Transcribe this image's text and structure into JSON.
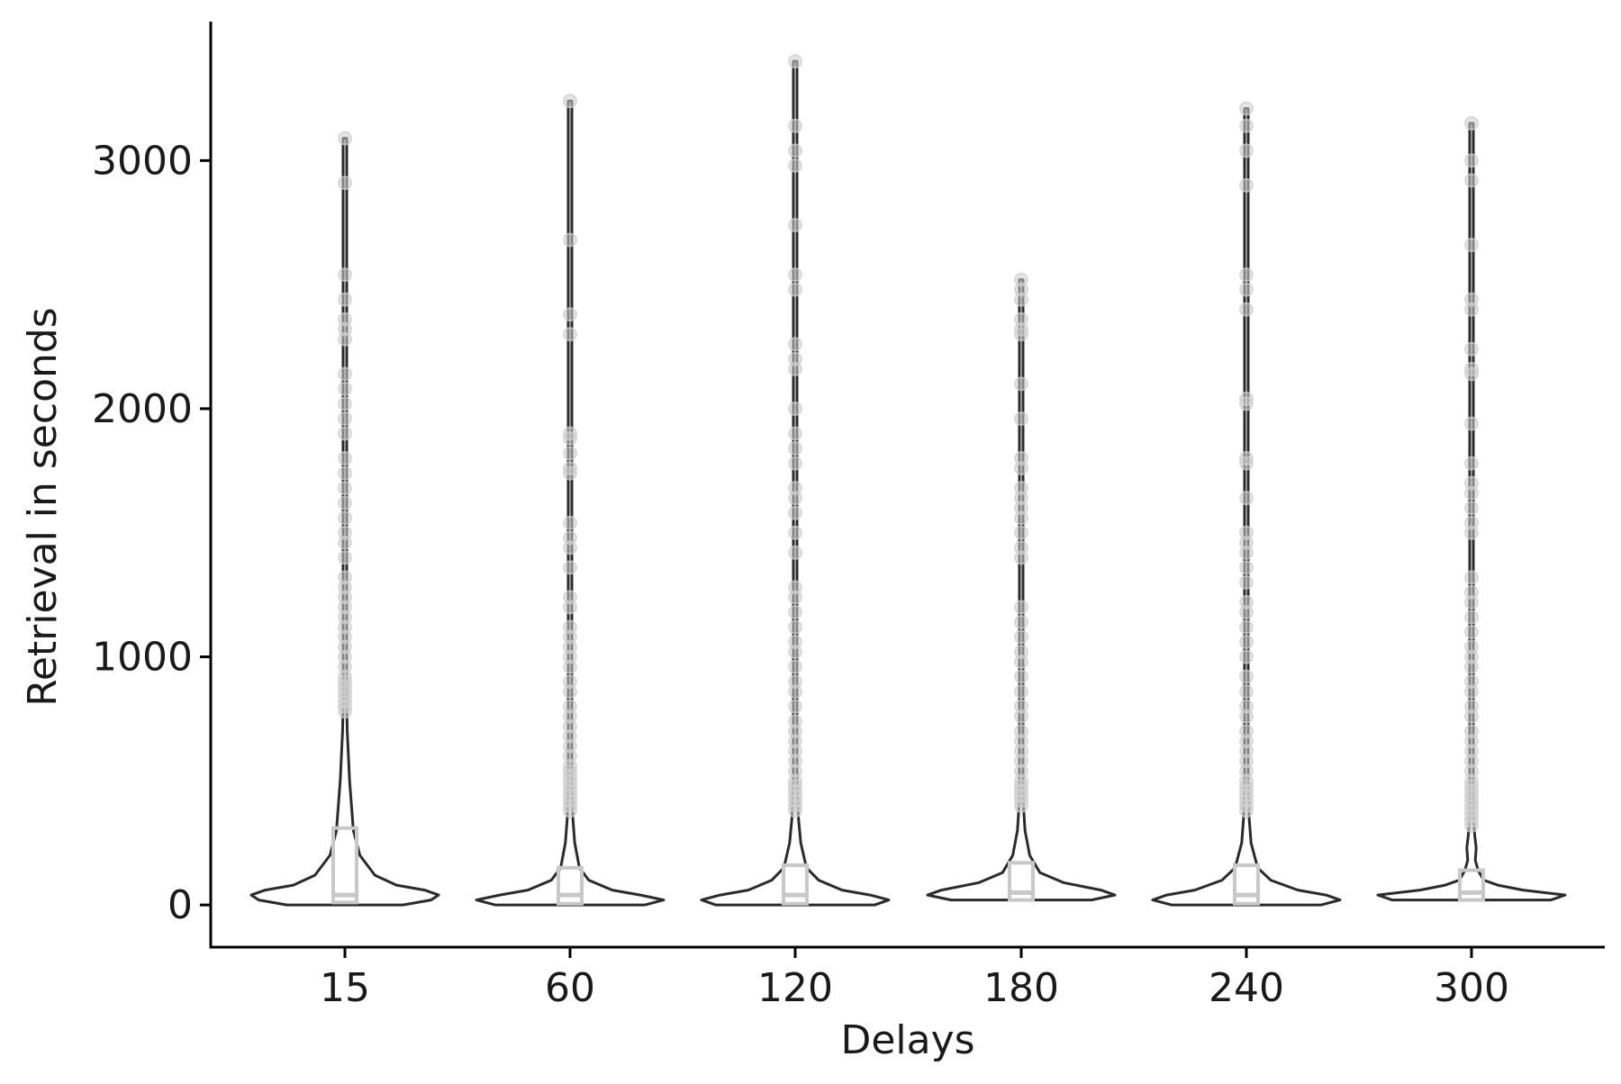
{
  "chart_data": {
    "type": "violin",
    "title": "",
    "xlabel": "Delays",
    "ylabel": "Retrieval in seconds",
    "categories": [
      "15",
      "60",
      "120",
      "180",
      "240",
      "300"
    ],
    "y_ticks": [
      0,
      1000,
      2000,
      3000
    ],
    "y_tick_labels": [
      "0",
      "1000",
      "2000",
      "3000"
    ],
    "ylim": [
      -170,
      3560
    ],
    "grid": false,
    "legend": "none",
    "colors": {
      "violin": "#2b2b2b",
      "box": "#c8c8c8",
      "points": "#cfcfcf",
      "axis": "#000000"
    },
    "groups": [
      {
        "category": "15",
        "max": 3090,
        "box": {
          "q1": 10,
          "median": 40,
          "q3": 310
        },
        "density": [
          [
            0,
            0.62
          ],
          [
            20,
            0.92
          ],
          [
            40,
            1.0
          ],
          [
            60,
            0.85
          ],
          [
            80,
            0.55
          ],
          [
            120,
            0.32
          ],
          [
            200,
            0.16
          ],
          [
            300,
            0.09
          ],
          [
            500,
            0.05
          ],
          [
            700,
            0.025
          ],
          [
            800,
            0.015
          ],
          [
            1200,
            0.008
          ],
          [
            2000,
            0.005
          ],
          [
            3090,
            0.004
          ]
        ],
        "outliers": [
          780,
          800,
          820,
          840,
          860,
          880,
          900,
          920,
          960,
          1000,
          1040,
          1080,
          1120,
          1160,
          1200,
          1240,
          1280,
          1320,
          1400,
          1460,
          1500,
          1560,
          1620,
          1680,
          1740,
          1800,
          1900,
          1960,
          2020,
          2080,
          2140,
          2280,
          2320,
          2360,
          2440,
          2540,
          2910,
          3090
        ]
      },
      {
        "category": "60",
        "max": 3240,
        "box": {
          "q1": 5,
          "median": 40,
          "q3": 150
        },
        "density": [
          [
            0,
            0.8
          ],
          [
            20,
            1.0
          ],
          [
            40,
            0.75
          ],
          [
            60,
            0.45
          ],
          [
            100,
            0.2
          ],
          [
            150,
            0.1
          ],
          [
            250,
            0.05
          ],
          [
            350,
            0.03
          ],
          [
            500,
            0.015
          ],
          [
            1000,
            0.008
          ],
          [
            2000,
            0.005
          ],
          [
            3240,
            0.004
          ]
        ],
        "outliers": [
          380,
          400,
          420,
          440,
          460,
          480,
          500,
          520,
          540,
          560,
          600,
          640,
          680,
          720,
          760,
          800,
          860,
          900,
          960,
          1000,
          1040,
          1080,
          1120,
          1200,
          1240,
          1360,
          1440,
          1480,
          1540,
          1740,
          1760,
          1820,
          1880,
          1900,
          2300,
          2380,
          2680,
          3240
        ]
      },
      {
        "category": "120",
        "max": 3400,
        "box": {
          "q1": 5,
          "median": 40,
          "q3": 160
        },
        "density": [
          [
            0,
            0.85
          ],
          [
            20,
            1.0
          ],
          [
            40,
            0.8
          ],
          [
            60,
            0.5
          ],
          [
            100,
            0.25
          ],
          [
            150,
            0.12
          ],
          [
            250,
            0.06
          ],
          [
            350,
            0.035
          ],
          [
            500,
            0.02
          ],
          [
            1000,
            0.009
          ],
          [
            2000,
            0.006
          ],
          [
            3400,
            0.004
          ]
        ],
        "outliers": [
          380,
          400,
          420,
          440,
          460,
          480,
          500,
          540,
          580,
          620,
          660,
          700,
          740,
          800,
          860,
          900,
          960,
          1020,
          1060,
          1120,
          1180,
          1240,
          1280,
          1420,
          1500,
          1580,
          1640,
          1680,
          1780,
          1840,
          1900,
          2000,
          2160,
          2200,
          2260,
          2480,
          2540,
          2740,
          2980,
          3040,
          3140,
          3400
        ]
      },
      {
        "category": "180",
        "max": 2520,
        "box": {
          "q1": 20,
          "median": 50,
          "q3": 170
        },
        "density": [
          [
            20,
            0.75
          ],
          [
            40,
            1.0
          ],
          [
            60,
            0.85
          ],
          [
            90,
            0.45
          ],
          [
            130,
            0.2
          ],
          [
            200,
            0.09
          ],
          [
            300,
            0.04
          ],
          [
            420,
            0.02
          ],
          [
            600,
            0.01
          ],
          [
            1200,
            0.006
          ],
          [
            2000,
            0.005
          ],
          [
            2520,
            0.004
          ]
        ],
        "outliers": [
          400,
          420,
          440,
          460,
          480,
          500,
          540,
          580,
          620,
          660,
          700,
          760,
          800,
          860,
          920,
          980,
          1020,
          1080,
          1140,
          1200,
          1400,
          1440,
          1500,
          1560,
          1600,
          1640,
          1680,
          1760,
          1800,
          1960,
          2100,
          2300,
          2320,
          2360,
          2440,
          2480,
          2520
        ]
      },
      {
        "category": "240",
        "max": 3210,
        "box": {
          "q1": 5,
          "median": 40,
          "q3": 160
        },
        "density": [
          [
            0,
            0.8
          ],
          [
            20,
            1.0
          ],
          [
            40,
            0.85
          ],
          [
            60,
            0.55
          ],
          [
            100,
            0.26
          ],
          [
            150,
            0.12
          ],
          [
            250,
            0.05
          ],
          [
            350,
            0.03
          ],
          [
            500,
            0.015
          ],
          [
            1000,
            0.008
          ],
          [
            2000,
            0.005
          ],
          [
            3210,
            0.004
          ]
        ],
        "outliers": [
          380,
          400,
          420,
          440,
          460,
          480,
          500,
          540,
          580,
          620,
          660,
          700,
          760,
          800,
          860,
          920,
          1000,
          1060,
          1120,
          1180,
          1220,
          1300,
          1360,
          1420,
          1460,
          1500,
          1640,
          1780,
          1800,
          2020,
          2040,
          2400,
          2480,
          2540,
          2900,
          3040,
          3140,
          3210
        ]
      },
      {
        "category": "300",
        "max": 3150,
        "box": {
          "q1": 20,
          "median": 50,
          "q3": 140
        },
        "density": [
          [
            20,
            0.85
          ],
          [
            40,
            1.0
          ],
          [
            60,
            0.55
          ],
          [
            80,
            0.28
          ],
          [
            100,
            0.13
          ],
          [
            140,
            0.07
          ],
          [
            180,
            0.04
          ],
          [
            230,
            0.05
          ],
          [
            280,
            0.035
          ],
          [
            350,
            0.02
          ],
          [
            500,
            0.012
          ],
          [
            1000,
            0.007
          ],
          [
            2000,
            0.005
          ],
          [
            3150,
            0.004
          ]
        ],
        "outliers": [
          320,
          340,
          360,
          380,
          400,
          420,
          440,
          460,
          480,
          500,
          540,
          580,
          620,
          660,
          700,
          760,
          800,
          860,
          900,
          960,
          1000,
          1040,
          1100,
          1160,
          1220,
          1260,
          1320,
          1500,
          1540,
          1600,
          1660,
          1700,
          1780,
          1940,
          2140,
          2160,
          2240,
          2400,
          2440,
          2660,
          2920,
          3000,
          3150
        ]
      }
    ]
  }
}
